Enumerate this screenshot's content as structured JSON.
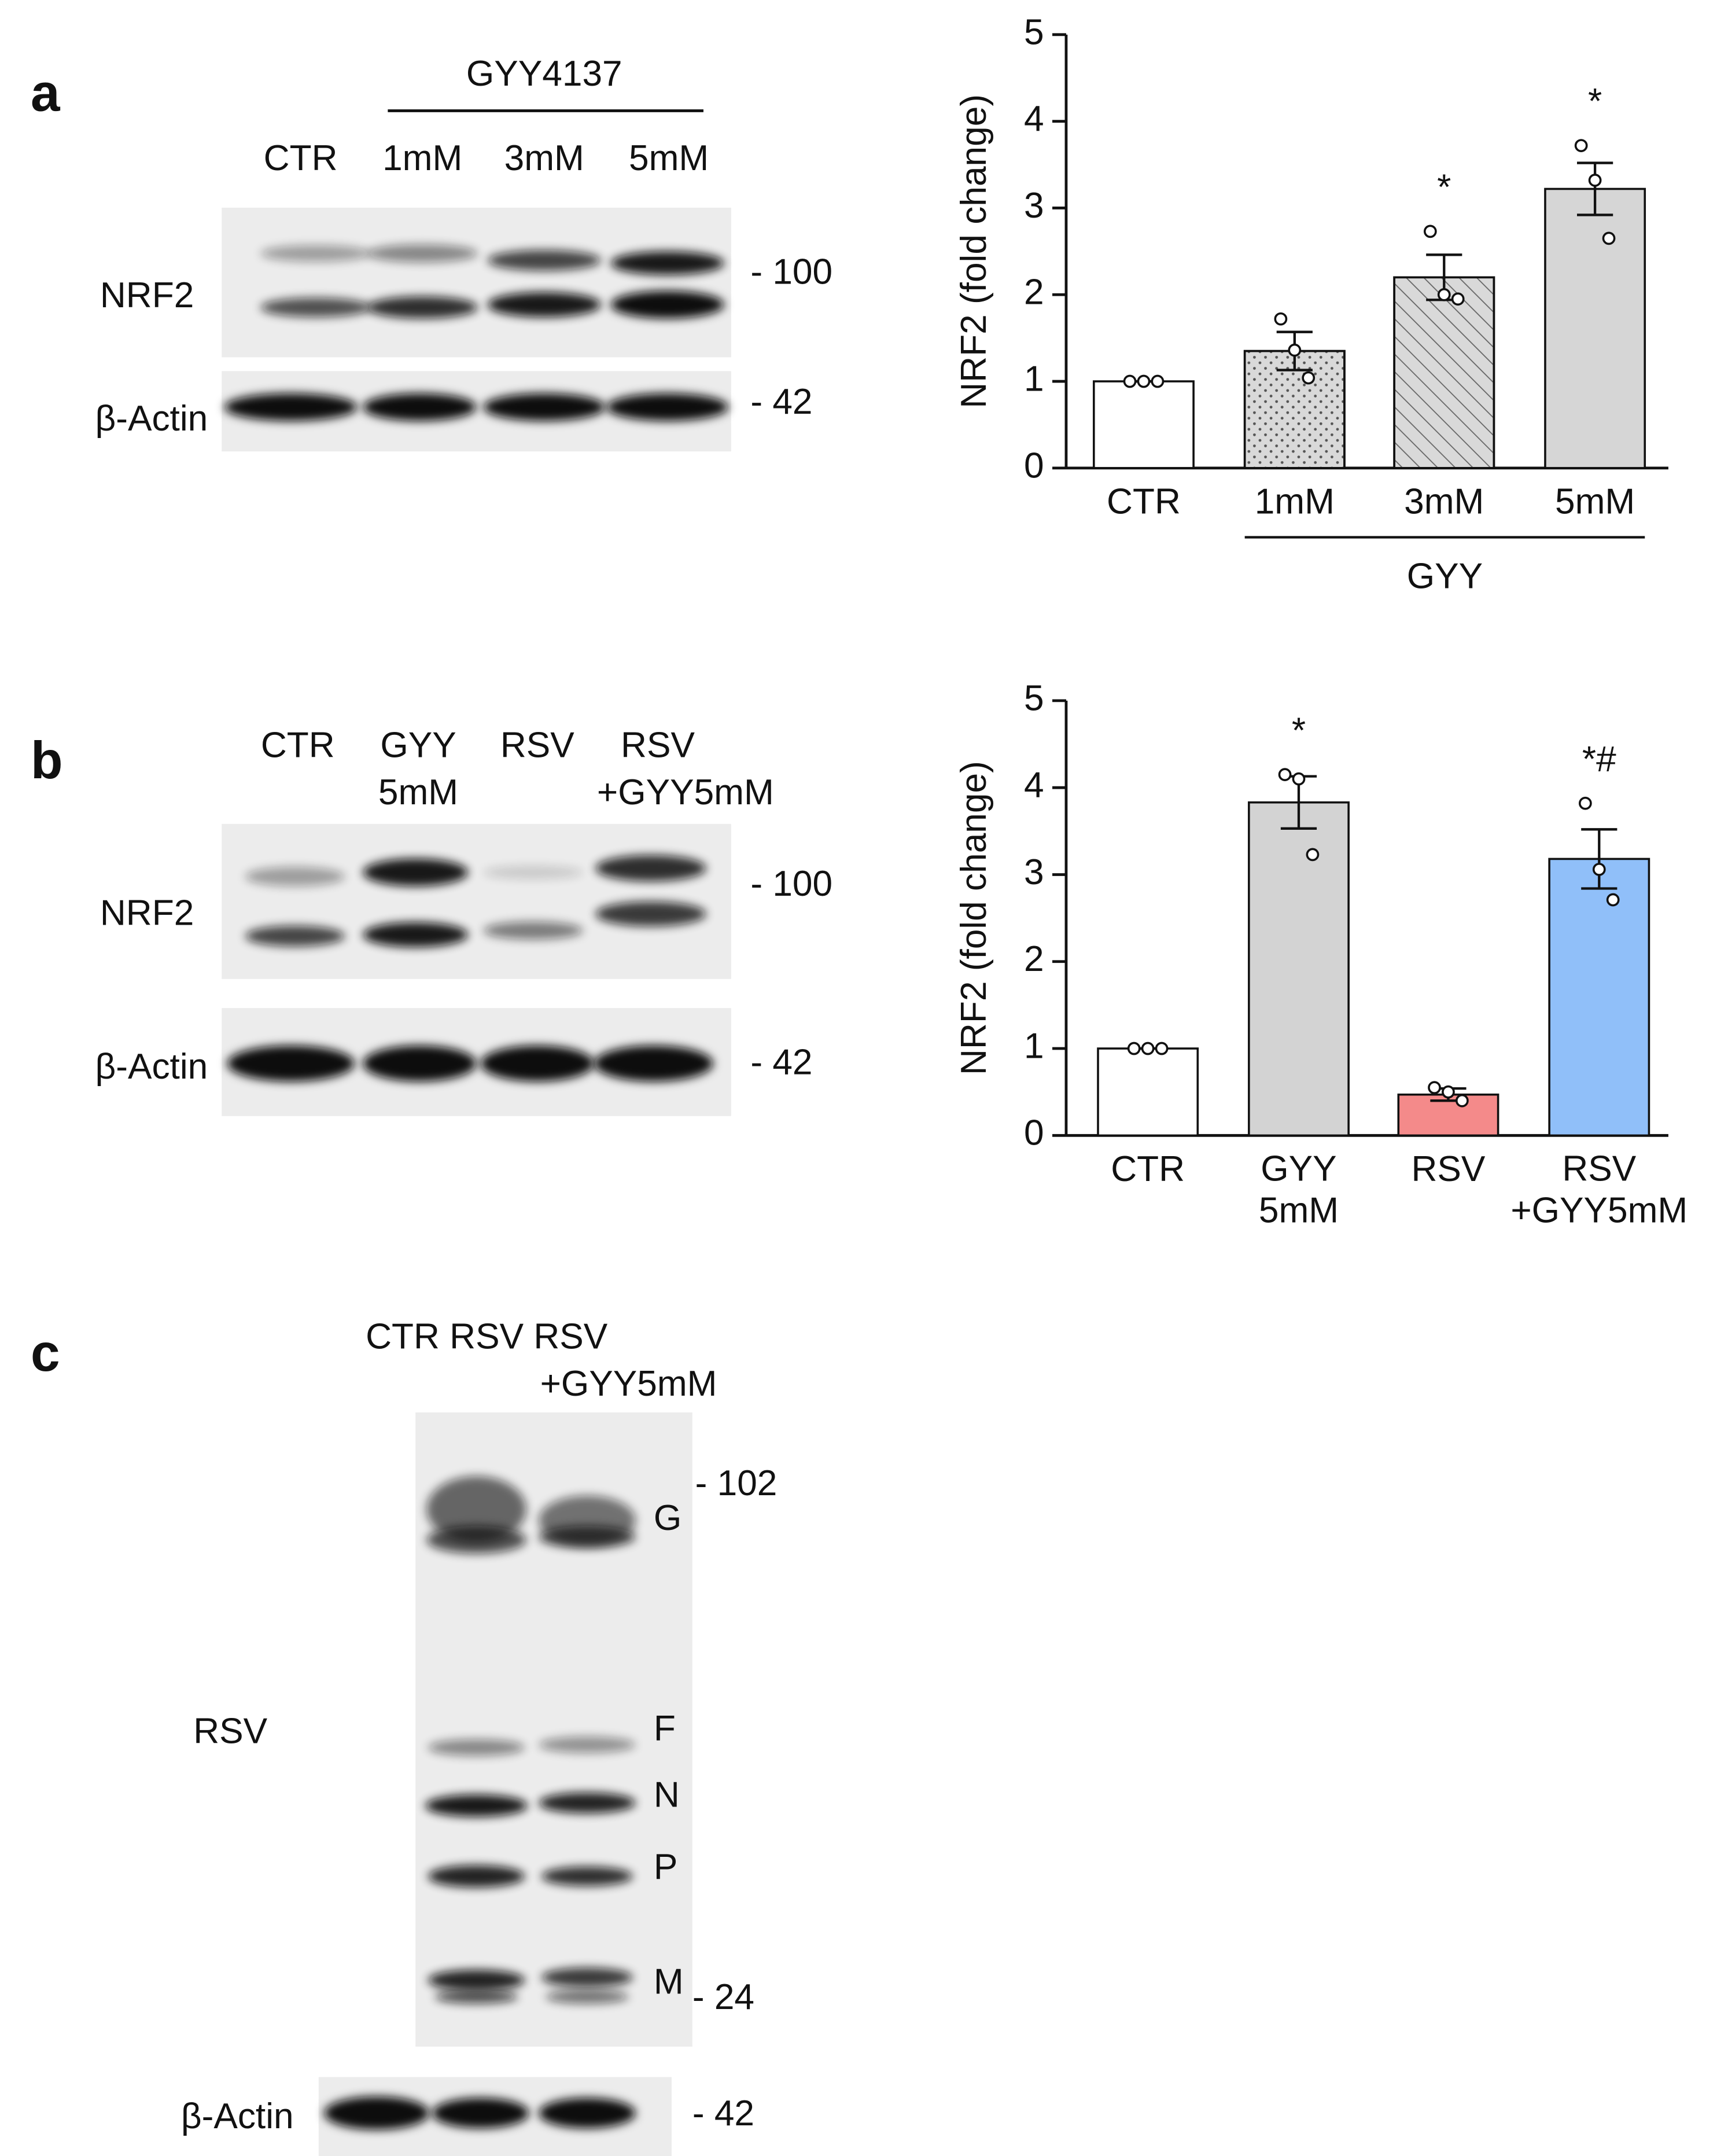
{
  "panels": {
    "a": {
      "letter": "a",
      "treatment": "GYY4137",
      "lanes": [
        "CTR",
        "1mM",
        "3mM",
        "5mM"
      ],
      "blots": [
        "NRF2",
        "β-Actin"
      ],
      "markers": [
        "- 100",
        "- 42"
      ]
    },
    "b": {
      "letter": "b",
      "lanes": [
        "CTR",
        "GYY",
        "5mM",
        "RSV",
        "RSV",
        "+GYY5mM"
      ],
      "blots": [
        "NRF2",
        "β-Actin"
      ],
      "markers": [
        "- 100",
        "- 42"
      ]
    },
    "c": {
      "letter": "c",
      "lanes": [
        "CTR RSV RSV",
        "+GYY5mM"
      ],
      "blots": [
        "RSV",
        "β-Actin"
      ],
      "bands": [
        "G",
        "F",
        "N",
        "P",
        "M"
      ],
      "markers": [
        "- 102",
        "- 24",
        "- 42"
      ]
    }
  },
  "chart_data": [
    {
      "type": "bar",
      "ylabel": "NRF2 (fold change)",
      "categories": [
        "CTR",
        "1mM",
        "3mM",
        "5mM"
      ],
      "group_label": "GYY",
      "values": [
        1.0,
        1.35,
        2.2,
        3.22
      ],
      "errors": [
        0,
        0.22,
        0.26,
        0.3
      ],
      "points": [
        [
          1,
          1,
          1
        ],
        [
          1.72,
          1.36,
          1.04
        ],
        [
          2.73,
          2.0,
          1.95
        ],
        [
          3.72,
          3.32,
          2.65
        ]
      ],
      "annotations": [
        null,
        null,
        "*",
        "*"
      ],
      "colors": [
        "#ffffff",
        "#d9d9d9",
        "#d9d9d9",
        "#d6d6d6"
      ],
      "patterns": [
        "solid",
        "dots",
        "hatch",
        "solid"
      ],
      "ylim": [
        0,
        5
      ],
      "yticks": [
        0,
        1,
        2,
        3,
        4,
        5
      ]
    },
    {
      "type": "bar",
      "ylabel": "NRF2 (fold change)",
      "categories": [
        "CTR",
        "GYY\n5mM",
        "RSV",
        "RSV\n+GYY5mM"
      ],
      "values": [
        1.0,
        3.83,
        0.47,
        3.18
      ],
      "errors": [
        0,
        0.3,
        0.07,
        0.34
      ],
      "points": [
        [
          1,
          1,
          1
        ],
        [
          4.15,
          4.1,
          3.23
        ],
        [
          0.55,
          0.5,
          0.4
        ],
        [
          3.82,
          3.06,
          2.71
        ]
      ],
      "annotations": [
        null,
        "*",
        null,
        "*#"
      ],
      "colors": [
        "#ffffff",
        "#d3d3d3",
        "#f48a8a",
        "#90bff9"
      ],
      "patterns": [
        "solid",
        "solid",
        "solid",
        "solid"
      ],
      "ylim": [
        0,
        5
      ],
      "yticks": [
        0,
        1,
        2,
        3,
        4,
        5
      ]
    }
  ]
}
